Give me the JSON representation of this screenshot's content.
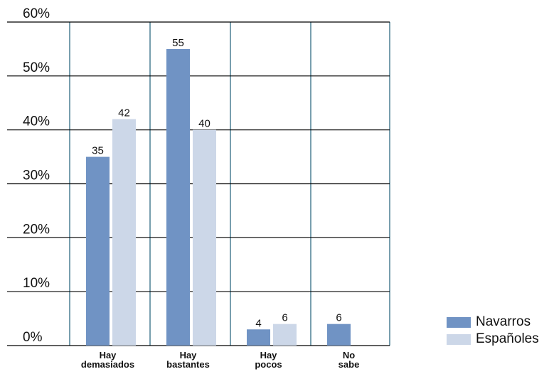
{
  "chart_data": {
    "type": "bar",
    "categories": [
      [
        "Hay",
        "demasiados"
      ],
      [
        "Hay",
        "bastantes"
      ],
      [
        "Hay",
        "pocos"
      ],
      [
        "No",
        "sabe"
      ]
    ],
    "series": [
      {
        "name": "Navarros",
        "values": [
          35,
          55,
          4,
          6
        ],
        "labels": [
          "35",
          "55",
          "4",
          "6"
        ],
        "display": [
          35,
          55,
          3,
          4
        ],
        "color": "#7093c4"
      },
      {
        "name": "Españoles",
        "values": [
          42,
          40,
          6,
          null
        ],
        "labels": [
          "42",
          "40",
          "6",
          ""
        ],
        "display": [
          42,
          40,
          4,
          0
        ],
        "color": "#ccd7e8"
      }
    ],
    "yticks": [
      "0%",
      "10%",
      "20%",
      "30%",
      "40%",
      "50%",
      "60%"
    ],
    "ylim": [
      0,
      60
    ],
    "grid": true,
    "legend_position": "bottom-right",
    "colors": {
      "grid_horizontal": "#000000",
      "grid_vertical": "#1f5f78"
    }
  }
}
